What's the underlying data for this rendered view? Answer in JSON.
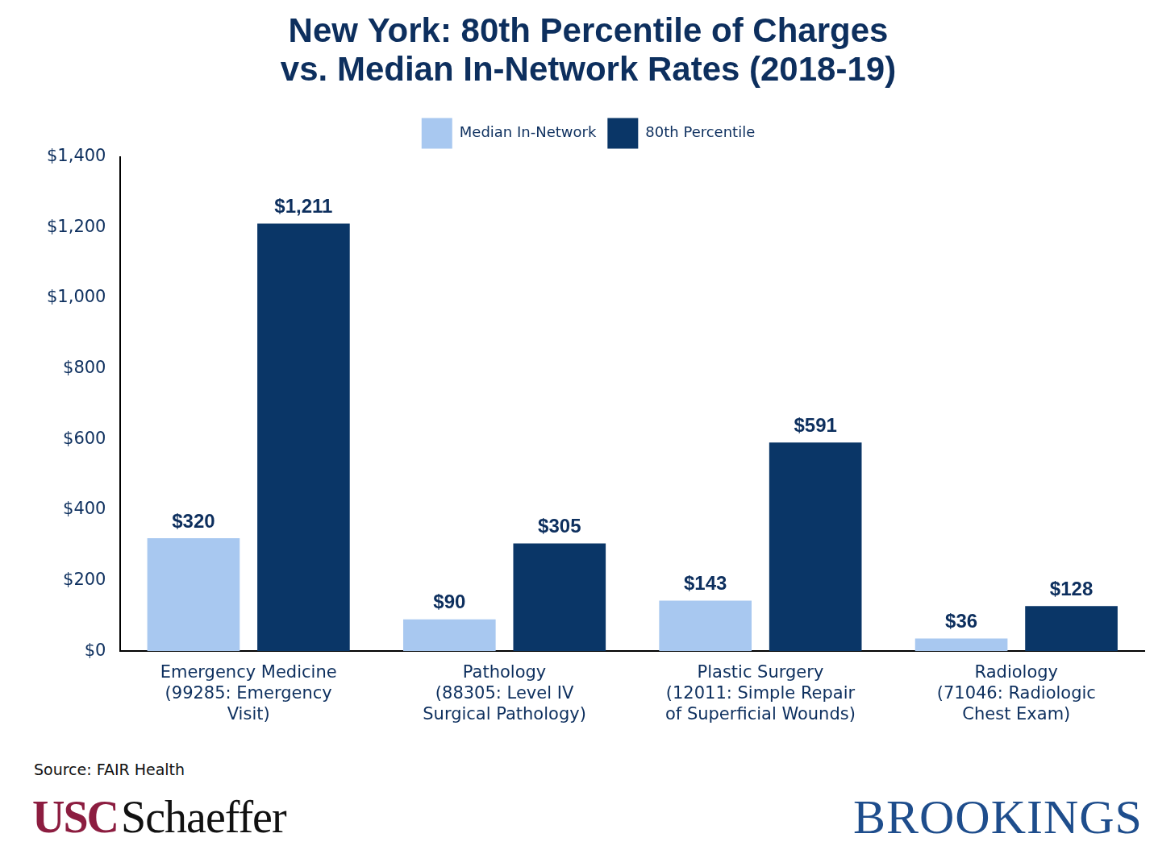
{
  "chart_data": {
    "type": "bar",
    "title": [
      "New York: 80th Percentile of Charges",
      "vs. Median In-Network Rates (2018-19)"
    ],
    "categories": [
      [
        "Emergency Medicine",
        "(99285: Emergency",
        "Visit)"
      ],
      [
        "Pathology",
        "(88305: Level IV",
        "Surgical Pathology)"
      ],
      [
        "Plastic Surgery",
        "(12011: Simple Repair",
        "of Superficial Wounds)"
      ],
      [
        "Radiology",
        "(71046: Radiologic",
        "Chest Exam)"
      ]
    ],
    "series": [
      {
        "name": "Median In-Network",
        "color": "#a8c8f0",
        "values": [
          320,
          90,
          143,
          36
        ],
        "value_labels": [
          "$320",
          "$90",
          "$143",
          "$36"
        ]
      },
      {
        "name": "80th Percentile",
        "color": "#0a3667",
        "values": [
          1211,
          305,
          591,
          128
        ],
        "value_labels": [
          "$1,211",
          "$305",
          "$591",
          "$128"
        ]
      }
    ],
    "ylim": [
      0,
      1400
    ],
    "yticks": [
      {
        "value": 0,
        "label": "$0"
      },
      {
        "value": 200,
        "label": "$200"
      },
      {
        "value": 400,
        "label": "$400"
      },
      {
        "value": 600,
        "label": "$600"
      },
      {
        "value": 800,
        "label": "$800"
      },
      {
        "value": 1000,
        "label": "$1,000"
      },
      {
        "value": 1200,
        "label": "$1,200"
      },
      {
        "value": 1400,
        "label": "$1,400"
      }
    ],
    "grid": false,
    "legend": "top",
    "data_labels": true,
    "source": "Source: FAIR Health",
    "annotations": [
      "USC",
      "Schaeffer",
      "BROOKINGS"
    ]
  }
}
